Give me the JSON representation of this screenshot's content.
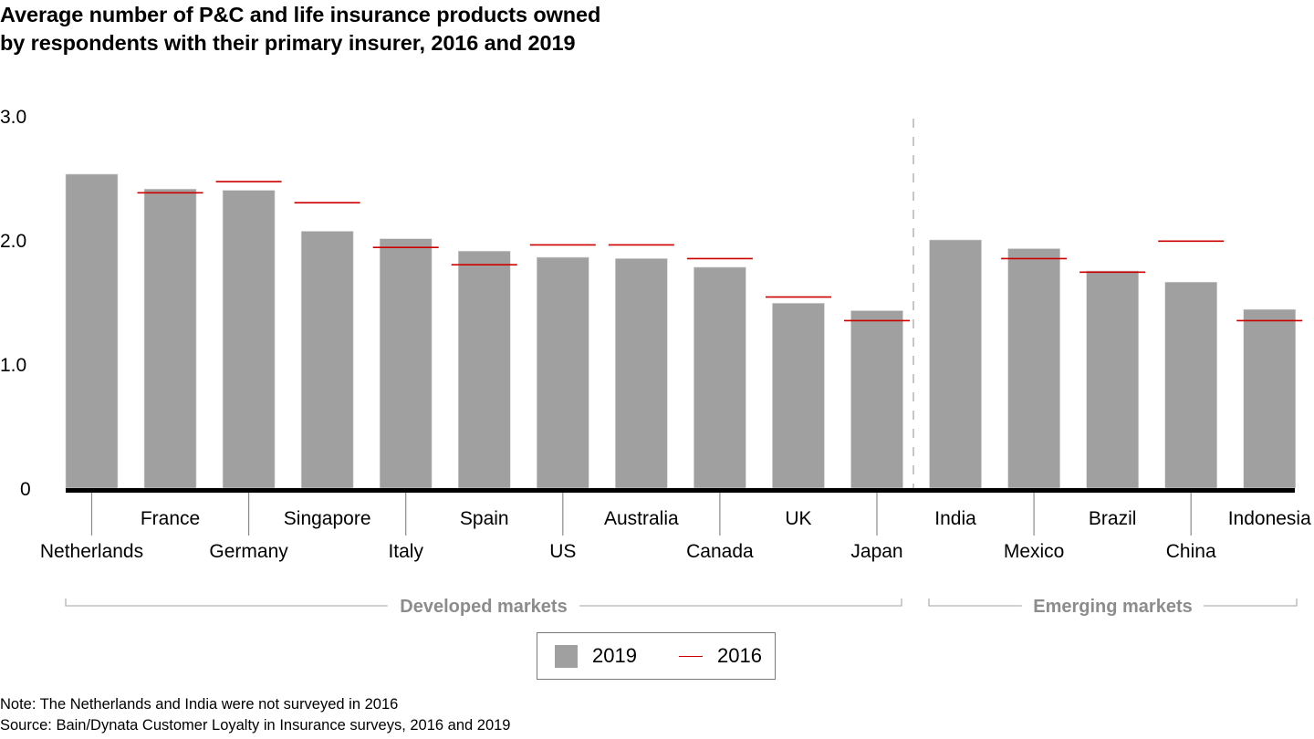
{
  "title": {
    "line1": "Average number of P&C and life insurance products owned",
    "line2": "by respondents with their primary insurer, 2016 and 2019"
  },
  "colors": {
    "bar_2019": "#a0a0a0",
    "line_2016": "#cc0000",
    "baseline": "#000000",
    "group_label": "#8c8c8c"
  },
  "legend": {
    "items": [
      {
        "label": "2019",
        "type": "bar"
      },
      {
        "label": "2016",
        "type": "line"
      }
    ]
  },
  "notes": {
    "note": "Note: The Netherlands and India were not surveyed in 2016",
    "source": "Source: Bain/Dynata Customer Loyalty in Insurance surveys, 2016 and 2019"
  },
  "chart_data": {
    "type": "bar",
    "title": "Average number of P&C and life insurance products owned by respondents with their primary insurer, 2016 and 2019",
    "xlabel": "",
    "ylabel": "",
    "ylim": [
      0,
      3.0
    ],
    "yticks": [
      0,
      1.0,
      2.0,
      3.0
    ],
    "ytick_labels": [
      "0",
      "1.0",
      "2.0",
      "3.0"
    ],
    "grid": false,
    "legend_position": "bottom-center",
    "categories": [
      "Netherlands",
      "France",
      "Germany",
      "Singapore",
      "Italy",
      "Spain",
      "US",
      "Australia",
      "Canada",
      "UK",
      "Japan",
      "India",
      "Mexico",
      "Brazil",
      "China",
      "Indonesia"
    ],
    "series": [
      {
        "name": "2019",
        "mark": "bar",
        "values": [
          2.53,
          2.41,
          2.4,
          2.07,
          2.01,
          1.91,
          1.86,
          1.85,
          1.78,
          1.49,
          1.43,
          2.0,
          1.93,
          1.75,
          1.66,
          1.44
        ]
      },
      {
        "name": "2016",
        "mark": "line",
        "values": [
          null,
          2.38,
          2.47,
          2.3,
          1.94,
          1.8,
          1.96,
          1.96,
          1.85,
          1.54,
          1.35,
          null,
          1.85,
          1.74,
          1.99,
          1.35
        ]
      }
    ],
    "groups": [
      {
        "label": "Developed markets",
        "from": "Netherlands",
        "to": "Japan"
      },
      {
        "label": "Emerging markets",
        "from": "India",
        "to": "Indonesia"
      }
    ]
  }
}
